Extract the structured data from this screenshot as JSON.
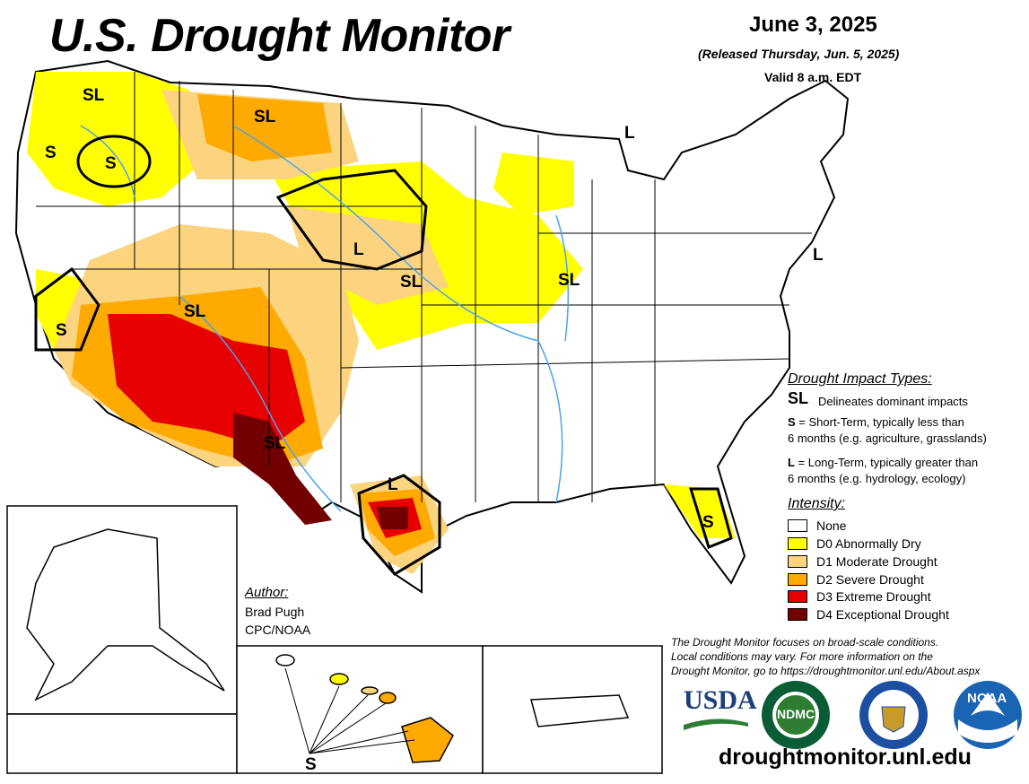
{
  "header": {
    "title": "U.S. Drought Monitor",
    "date": "June 3, 2025",
    "released": "(Released Thursday, Jun. 5, 2025)",
    "valid": "Valid 8 a.m. EDT"
  },
  "map_labels": {
    "sl": "SL",
    "s": "S",
    "l": "L"
  },
  "impact_types": {
    "title": "Drought Impact Types:",
    "delineates_symbol": "SL",
    "delineates": "Delineates dominant impacts",
    "short_key": "S",
    "short_line1": " = Short-Term, typically less than",
    "short_line2": "6 months (e.g. agriculture, grasslands)",
    "long_key": "L",
    "long_line1": " = Long-Term, typically greater than",
    "long_line2": "6 months (e.g. hydrology, ecology)"
  },
  "intensity": {
    "title": "Intensity:",
    "levels": [
      {
        "label": "None",
        "color": "#ffffff"
      },
      {
        "label": "D0 Abnormally Dry",
        "color": "#ffff00"
      },
      {
        "label": "D1 Moderate Drought",
        "color": "#fcd37f"
      },
      {
        "label": "D2 Severe Drought",
        "color": "#ffaa00"
      },
      {
        "label": "D3 Extreme Drought",
        "color": "#e60000"
      },
      {
        "label": "D4 Exceptional Drought",
        "color": "#730000"
      }
    ]
  },
  "author": {
    "title": "Author:",
    "name": "Brad Pugh",
    "org": "CPC/NOAA"
  },
  "disclaimer": {
    "line1": "The Drought Monitor focuses on broad-scale conditions.",
    "line2": "Local conditions may vary. For more information on the",
    "line3": "Drought Monitor, go to https://droughtmonitor.unl.edu/About.aspx"
  },
  "logos": {
    "usda": "USDA",
    "ndmc": "NDMC",
    "noaa": "NOAA"
  },
  "footer_url": "droughtmonitor.unl.edu",
  "colors": {
    "water": "#4aa3f0",
    "border": "#000000"
  }
}
